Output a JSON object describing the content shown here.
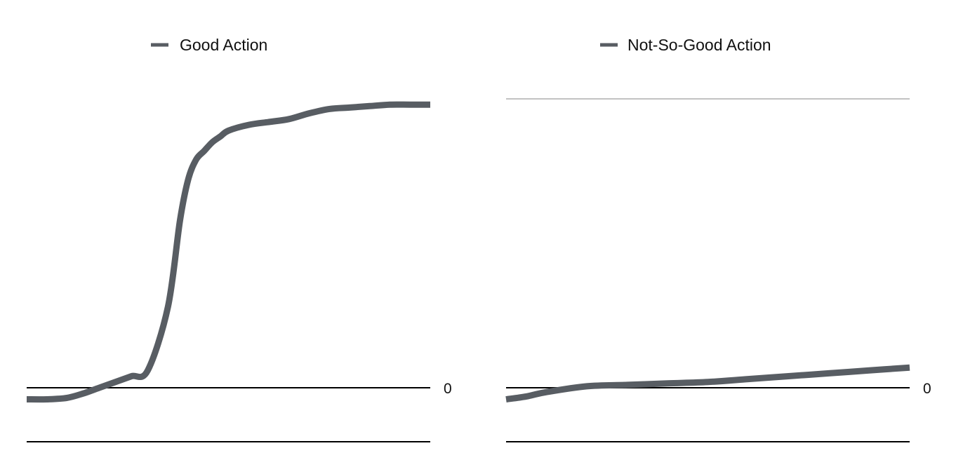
{
  "colors": {
    "series": "#585d63",
    "axis": "#000000",
    "gridline": "#c2c2c2"
  },
  "chart_data": [
    {
      "type": "line",
      "legend_position": "top",
      "ylim": [
        -0.2,
        1.0
      ],
      "xlim": [
        0,
        100
      ],
      "zero_label": "0",
      "gridlines": [],
      "series": [
        {
          "name": "Good Action",
          "x": [
            0,
            5,
            10,
            14,
            18,
            22,
            26,
            30,
            35,
            38,
            40,
            42,
            44,
            46,
            48,
            50,
            55,
            60,
            65,
            70,
            75,
            80,
            85,
            90,
            95,
            100
          ],
          "y": [
            -0.04,
            -0.04,
            -0.035,
            -0.02,
            0.0,
            0.02,
            0.04,
            0.06,
            0.28,
            0.58,
            0.72,
            0.79,
            0.82,
            0.85,
            0.87,
            0.89,
            0.91,
            0.92,
            0.93,
            0.95,
            0.965,
            0.97,
            0.975,
            0.98,
            0.98,
            0.98
          ]
        }
      ]
    },
    {
      "type": "line",
      "legend_position": "top",
      "ylim": [
        -0.2,
        1.0
      ],
      "xlim": [
        0,
        100
      ],
      "zero_label": "0",
      "gridlines": [
        1.0
      ],
      "series": [
        {
          "name": "Not-So-Good Action",
          "x": [
            0,
            5,
            10,
            20,
            30,
            40,
            50,
            60,
            70,
            80,
            90,
            100
          ],
          "y": [
            -0.04,
            -0.03,
            -0.015,
            0.005,
            0.01,
            0.015,
            0.02,
            0.03,
            0.04,
            0.05,
            0.06,
            0.07
          ]
        }
      ]
    }
  ]
}
